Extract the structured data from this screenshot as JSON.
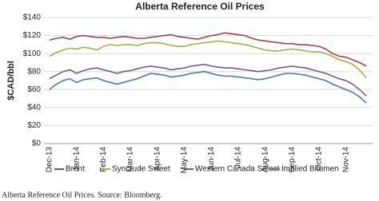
{
  "chart_data": {
    "type": "line",
    "title": "Alberta Reference Oil Prices",
    "y_label": "$CAD/bbl",
    "caption": "Alberta Reference Oil Prices. Source: Bloomberg.",
    "categories": [
      "Dec-13",
      null,
      null,
      null,
      "Jan-14",
      null,
      null,
      null,
      "Feb-14",
      null,
      null,
      null,
      "Mar-14",
      null,
      null,
      null,
      "Apr-14",
      null,
      null,
      null,
      "May-14",
      null,
      null,
      null,
      "Jun-14",
      null,
      null,
      null,
      "Jul-14",
      null,
      null,
      null,
      "Aug-14",
      null,
      null,
      null,
      "Sep-14",
      null,
      null,
      null,
      "Oct-14",
      null,
      null,
      null,
      "Nov-14",
      null,
      null,
      null
    ],
    "series": [
      {
        "name": "Brent",
        "color": "#a3434f",
        "values": [
          115,
          117,
          118,
          116,
          119,
          120,
          119,
          118,
          118,
          117,
          118,
          119,
          118,
          117,
          117,
          118,
          119,
          120,
          121,
          119,
          118,
          117,
          116,
          118,
          120,
          121,
          123,
          122,
          121,
          120,
          117,
          115,
          114,
          113,
          112,
          111,
          111,
          110,
          110,
          109,
          108,
          105,
          100,
          97,
          96,
          93,
          90,
          86
        ]
      },
      {
        "name": "Syncrude Sweet",
        "color": "#a4b04a",
        "values": [
          97,
          101,
          104,
          106,
          105,
          107,
          106,
          104,
          108,
          110,
          109,
          110,
          110,
          109,
          111,
          112,
          112,
          111,
          109,
          108,
          108,
          110,
          111,
          112,
          113,
          114,
          113,
          112,
          111,
          110,
          108,
          106,
          104,
          103,
          103,
          104,
          105,
          104,
          103,
          102,
          102,
          100,
          97,
          93,
          91,
          88,
          82,
          73
        ]
      },
      {
        "name": "Western Canada Select",
        "color": "#6f5b9b",
        "values": [
          72,
          76,
          80,
          82,
          78,
          81,
          83,
          84,
          82,
          80,
          78,
          80,
          81,
          83,
          85,
          86,
          85,
          84,
          82,
          83,
          84,
          86,
          87,
          88,
          86,
          85,
          84,
          84,
          83,
          82,
          81,
          80,
          81,
          82,
          84,
          85,
          86,
          85,
          84,
          82,
          80,
          78,
          75,
          72,
          70,
          66,
          60,
          53
        ]
      },
      {
        "name": "Implied Bitumen",
        "color": "#4a7bb0",
        "values": [
          60,
          66,
          70,
          72,
          68,
          71,
          72,
          73,
          70,
          68,
          66,
          68,
          70,
          72,
          75,
          78,
          77,
          76,
          74,
          75,
          76,
          78,
          79,
          80,
          78,
          76,
          75,
          75,
          74,
          73,
          72,
          71,
          72,
          74,
          76,
          78,
          78,
          77,
          76,
          74,
          72,
          70,
          66,
          63,
          60,
          57,
          52,
          45
        ]
      }
    ],
    "ylim": [
      0,
      140
    ],
    "yticks": [
      {
        "value": 0,
        "label": "$0"
      },
      {
        "value": 20,
        "label": "$20"
      },
      {
        "value": 40,
        "label": "$40"
      },
      {
        "value": 60,
        "label": "$60"
      },
      {
        "value": 80,
        "label": "$80"
      },
      {
        "value": 100,
        "label": "$100"
      },
      {
        "value": 120,
        "label": "$120"
      },
      {
        "value": 140,
        "label": "$140"
      }
    ],
    "grid": true,
    "legend": "bottom"
  }
}
